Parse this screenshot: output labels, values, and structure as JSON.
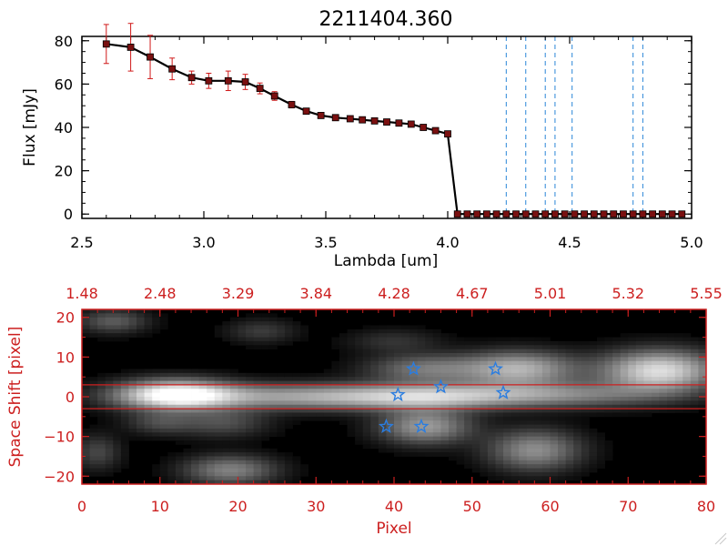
{
  "colors": {
    "background": "#ffffff",
    "spectrum_line": "#000000",
    "marker": "#7a1010",
    "errorbar": "#d01818",
    "vline": "#2a86d8",
    "image_axis": "#cc1f1f",
    "star": "#2a7de0",
    "band_line": "#cc1f1f"
  },
  "chart_data": [
    {
      "type": "line",
      "title": "2211404.360",
      "xlabel": "Lambda [um]",
      "ylabel": "Flux [mJy]",
      "xlim": [
        2.5,
        5.0
      ],
      "ylim": [
        -2,
        82
      ],
      "xticks": [
        2.5,
        3.0,
        3.5,
        4.0,
        4.5,
        5.0
      ],
      "xtick_labels": [
        "2.5",
        "3.0",
        "3.5",
        "4.0",
        "4.5",
        "5.0"
      ],
      "yticks": [
        0,
        20,
        40,
        60,
        80
      ],
      "ytick_labels": [
        "0",
        "20",
        "40",
        "60",
        "80"
      ],
      "series": [
        {
          "x": [
            2.6,
            2.7,
            2.78,
            2.87,
            2.95,
            3.02,
            3.1,
            3.17,
            3.23,
            3.29,
            3.36,
            3.42,
            3.48,
            3.54,
            3.6,
            3.65,
            3.7,
            3.75,
            3.8,
            3.85,
            3.9,
            3.95,
            4.0,
            4.04,
            4.08,
            4.12,
            4.16,
            4.2,
            4.24,
            4.28,
            4.32,
            4.36,
            4.4,
            4.44,
            4.48,
            4.52,
            4.56,
            4.6,
            4.64,
            4.68,
            4.72,
            4.76,
            4.8,
            4.84,
            4.88,
            4.92,
            4.96
          ],
          "y": [
            78.5,
            77.0,
            72.5,
            67.0,
            63.0,
            61.5,
            61.5,
            61.0,
            58.0,
            54.5,
            50.5,
            47.5,
            45.5,
            44.5,
            44.0,
            43.5,
            43.0,
            42.5,
            42.0,
            41.5,
            40.0,
            38.5,
            37.0,
            0,
            0,
            0,
            0,
            0,
            0,
            0,
            0,
            0,
            0,
            0,
            0,
            0,
            0,
            0,
            0,
            0,
            0,
            0,
            0,
            0,
            0,
            0,
            0
          ],
          "yerr": [
            9.0,
            11.0,
            10.0,
            5.0,
            3.0,
            3.5,
            4.5,
            3.5,
            2.5,
            2.0,
            1.5,
            1.0,
            1.0,
            0.8,
            0.8,
            0.8,
            0.8,
            0.8,
            0.8,
            0.8,
            0.8,
            0.8,
            0.8,
            0.8,
            0.8,
            0.8,
            0.8,
            0.8,
            0.8,
            0.8,
            0.8,
            0.8,
            0.8,
            0.8,
            0.8,
            0.8,
            0.8,
            0.8,
            0.8,
            0.8,
            0.8,
            0.8,
            0.8,
            0.8,
            0.8,
            0.8,
            0.8
          ]
        }
      ],
      "vlines": [
        4.24,
        4.32,
        4.4,
        4.44,
        4.51,
        4.76,
        4.8
      ]
    },
    {
      "type": "heatmap",
      "xlabel": "Pixel",
      "ylabel": "Space Shift [pixel]",
      "xlim": [
        0,
        80
      ],
      "ylim": [
        -22,
        22
      ],
      "xticks": [
        0,
        10,
        20,
        30,
        40,
        50,
        60,
        70,
        80
      ],
      "xtick_labels": [
        "0",
        "10",
        "20",
        "30",
        "40",
        "50",
        "60",
        "70",
        "80"
      ],
      "yticks": [
        -20,
        -10,
        0,
        10,
        20
      ],
      "ytick_labels": [
        "−20",
        "−10",
        "0",
        "10",
        "20"
      ],
      "top_xtick_labels": [
        "1.48",
        "2.48",
        "3.29",
        "3.84",
        "4.28",
        "4.67",
        "5.01",
        "5.32",
        "5.55"
      ],
      "band_lines": [
        3,
        -3
      ],
      "sources": [
        {
          "cx": 12,
          "cy": 0.5,
          "sx": 5,
          "sy": 2.5,
          "amp": 1.0
        },
        {
          "cx": 28,
          "cy": 0.0,
          "sx": 12,
          "sy": 2.2,
          "amp": 0.55
        },
        {
          "cx": 44,
          "cy": 0.0,
          "sx": 8,
          "sy": 2.2,
          "amp": 0.5
        },
        {
          "cx": 60,
          "cy": 0.5,
          "sx": 10,
          "sy": 2.2,
          "amp": 0.45
        },
        {
          "cx": 74,
          "cy": 6.5,
          "sx": 5,
          "sy": 3.5,
          "amp": 0.85
        },
        {
          "cx": 56,
          "cy": 7.0,
          "sx": 5,
          "sy": 3.0,
          "amp": 0.65
        },
        {
          "cx": 44,
          "cy": 7.0,
          "sx": 5,
          "sy": 2.5,
          "amp": 0.4
        },
        {
          "cx": 44,
          "cy": -7.5,
          "sx": 4,
          "sy": 3.0,
          "amp": 0.55
        },
        {
          "cx": 58,
          "cy": -13.5,
          "sx": 4,
          "sy": 3.5,
          "amp": 0.5
        },
        {
          "cx": 19,
          "cy": -18.5,
          "sx": 4,
          "sy": 2.5,
          "amp": 0.45
        },
        {
          "cx": 18,
          "cy": -6.5,
          "sx": 4,
          "sy": 2.5,
          "amp": 0.25
        },
        {
          "cx": 10,
          "cy": -6.5,
          "sx": 3,
          "sy": 2.0,
          "amp": 0.22
        },
        {
          "cx": 4,
          "cy": 19.0,
          "sx": 3,
          "sy": 2.0,
          "amp": 0.3
        },
        {
          "cx": 23,
          "cy": 16.5,
          "sx": 3,
          "sy": 2.0,
          "amp": 0.18
        },
        {
          "cx": 40,
          "cy": 14.0,
          "sx": 4,
          "sy": 2.0,
          "amp": 0.15
        },
        {
          "cx": 2,
          "cy": -14.0,
          "sx": 2,
          "sy": 3.0,
          "amp": 0.22
        }
      ],
      "stars": [
        {
          "x": 42.5,
          "y": 7.0
        },
        {
          "x": 53.0,
          "y": 7.0
        },
        {
          "x": 46.0,
          "y": 2.5
        },
        {
          "x": 40.5,
          "y": 0.5
        },
        {
          "x": 54.0,
          "y": 1.0
        },
        {
          "x": 39.0,
          "y": -7.5
        },
        {
          "x": 43.5,
          "y": -7.5
        }
      ]
    }
  ]
}
